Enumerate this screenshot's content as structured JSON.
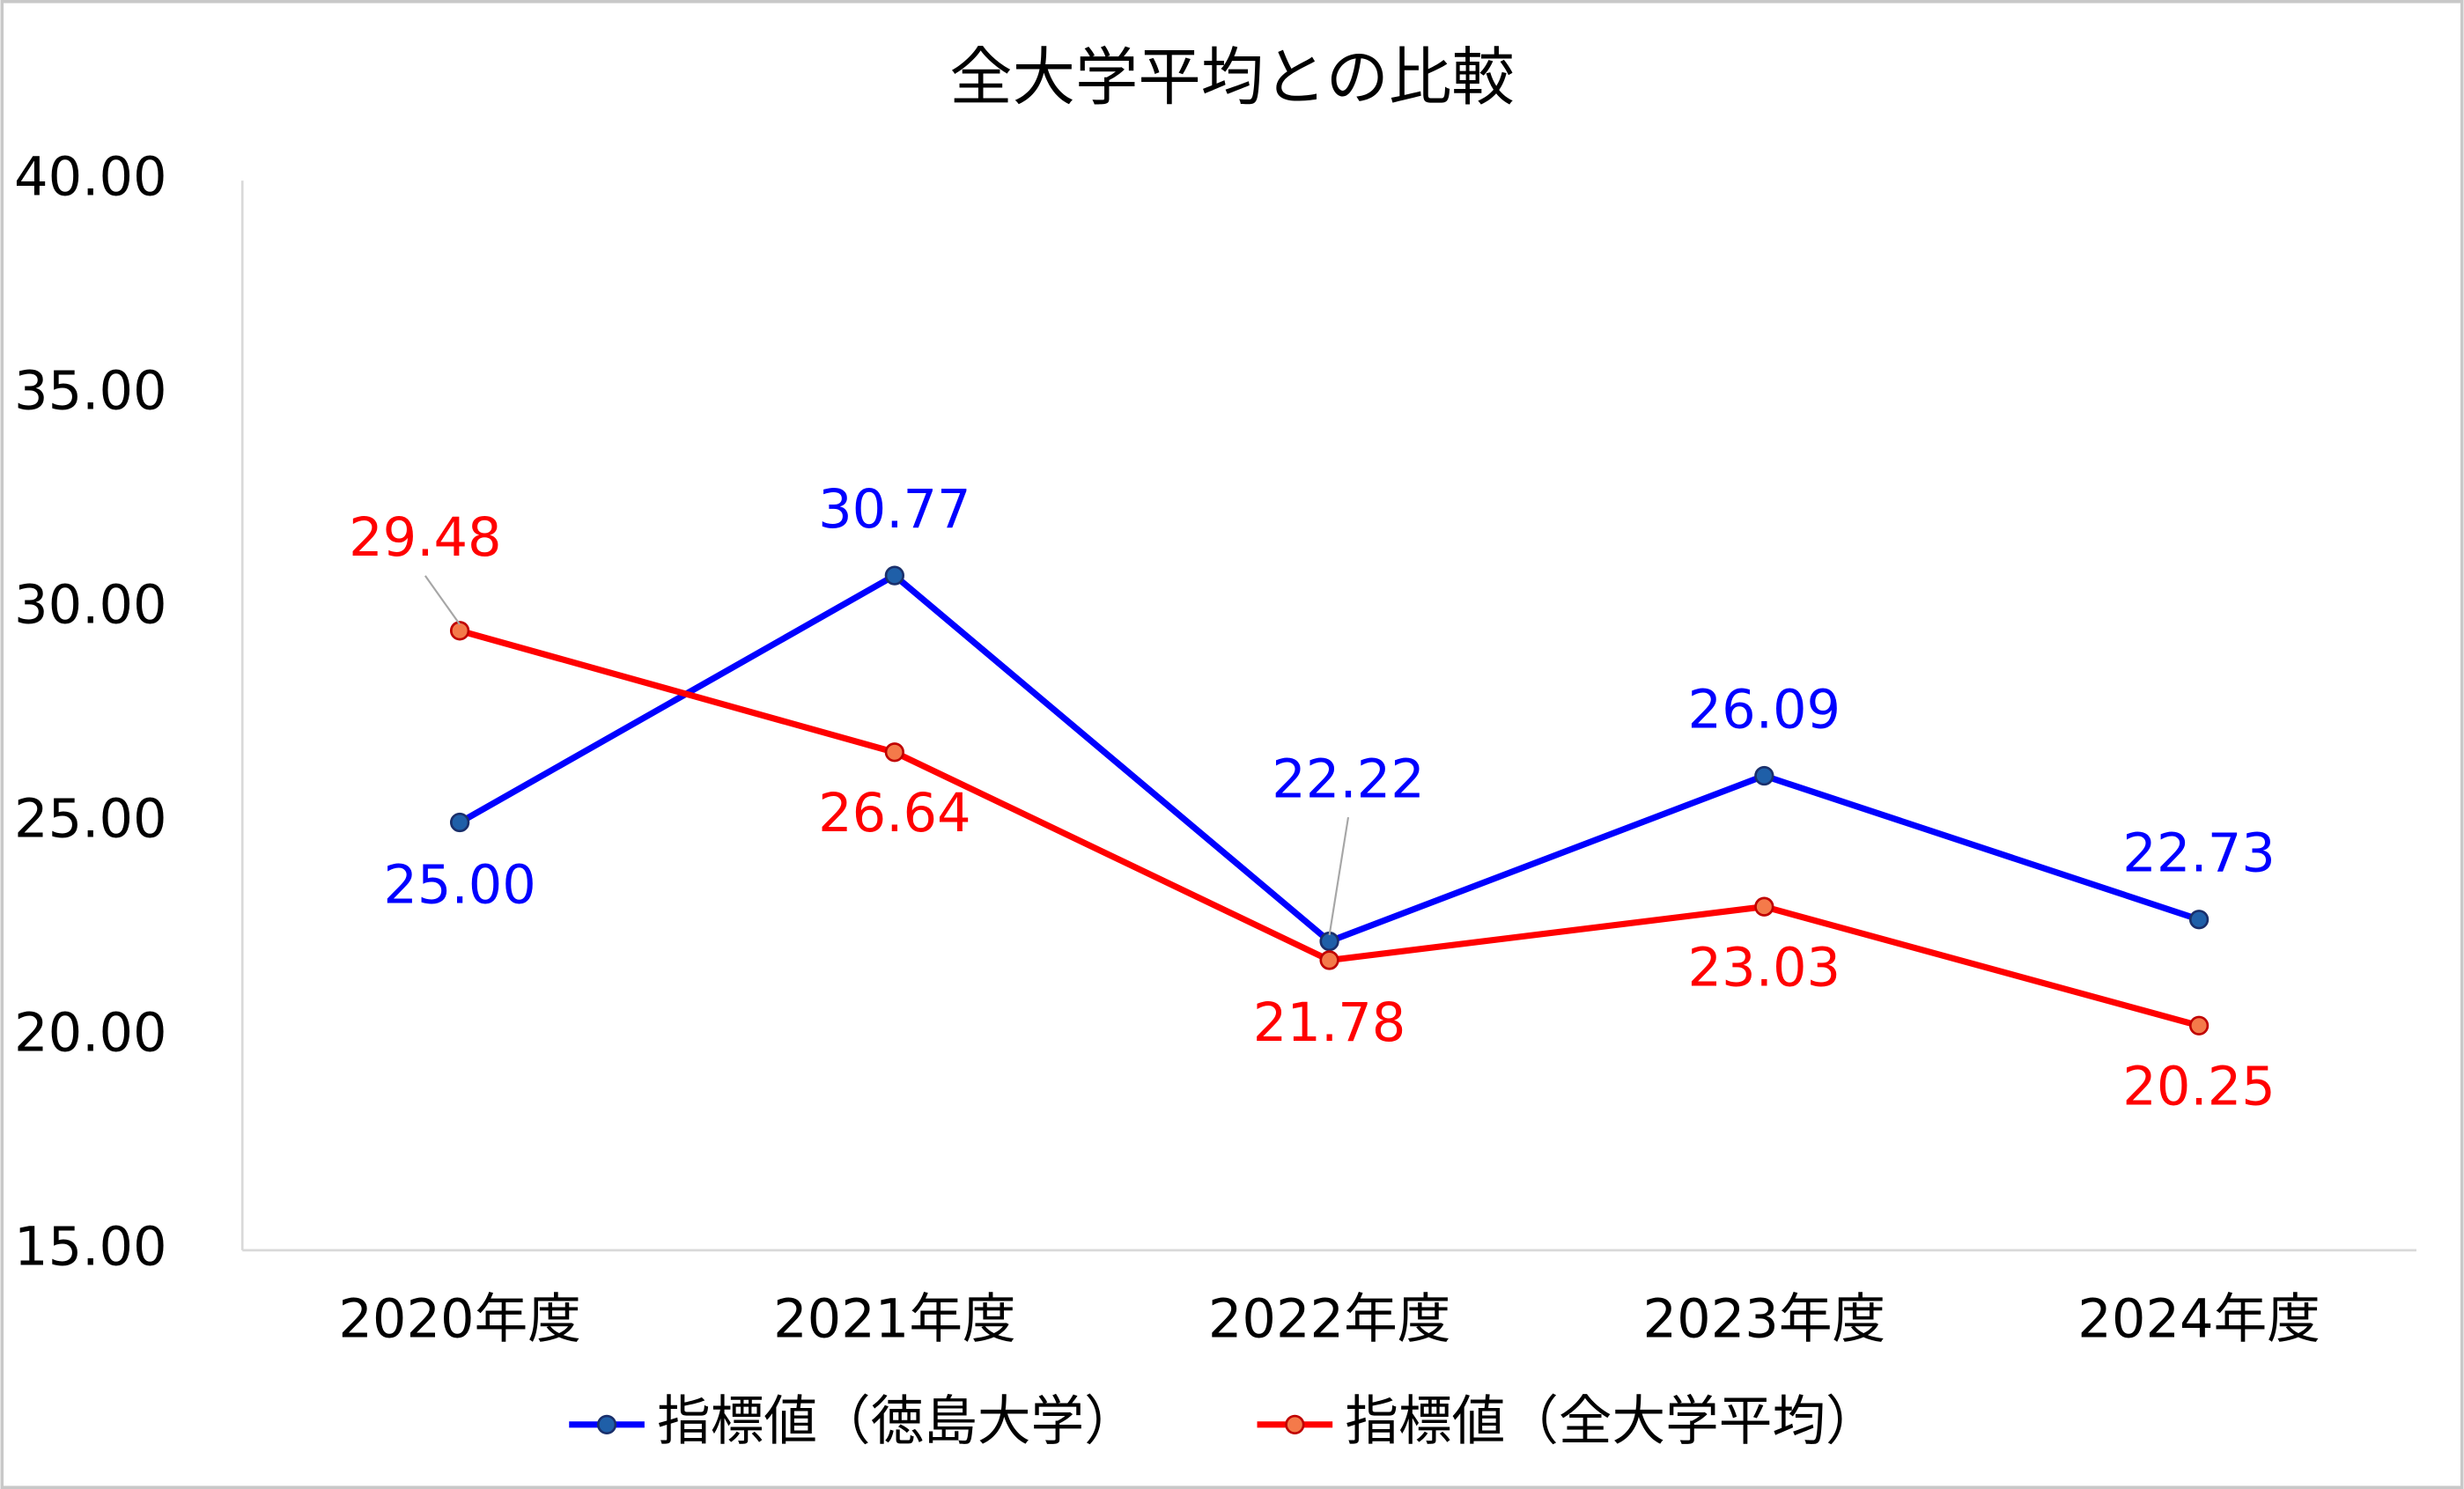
{
  "chart_data": {
    "type": "line",
    "title": "全大学平均との比較",
    "categories": [
      "2020年度",
      "2021年度",
      "2022年度",
      "2023年度",
      "2024年度"
    ],
    "series": [
      {
        "name": "指標値（徳島大学）",
        "color": "#0000ff",
        "marker_color": "#1f5fa8",
        "values": [
          25.0,
          30.77,
          22.22,
          26.09,
          22.73
        ],
        "value_labels": [
          "25.00",
          "30.77",
          "22.22",
          "26.09",
          "22.73"
        ]
      },
      {
        "name": "指標値（全大学平均）",
        "color": "#ff0000",
        "marker_color": "#f47a4a",
        "values": [
          29.48,
          26.64,
          21.78,
          23.03,
          20.25
        ],
        "value_labels": [
          "29.48",
          "26.64",
          "21.78",
          "23.03",
          "20.25"
        ]
      }
    ],
    "ylim": [
      15,
      40
    ],
    "yticks": [
      {
        "value": 15,
        "label": "15.00"
      },
      {
        "value": 20,
        "label": "20.00"
      },
      {
        "value": 25,
        "label": "25.00"
      },
      {
        "value": 30,
        "label": "30.00"
      },
      {
        "value": 35,
        "label": "35.00"
      },
      {
        "value": 40,
        "label": "40.00"
      }
    ],
    "grid": false,
    "legend": "bottom"
  }
}
